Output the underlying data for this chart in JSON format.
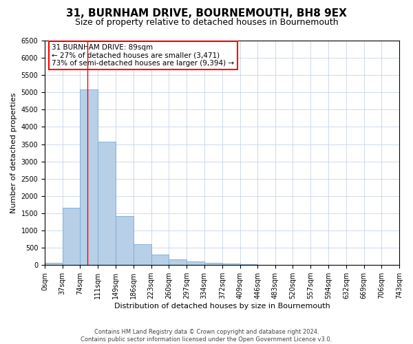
{
  "title1": "31, BURNHAM DRIVE, BOURNEMOUTH, BH8 9EX",
  "title2": "Size of property relative to detached houses in Bournemouth",
  "xlabel": "Distribution of detached houses by size in Bournemouth",
  "ylabel": "Number of detached properties",
  "footer1": "Contains HM Land Registry data © Crown copyright and database right 2024.",
  "footer2": "Contains public sector information licensed under the Open Government Licence v3.0.",
  "annotation_line1": "31 BURNHAM DRIVE: 89sqm",
  "annotation_line2": "← 27% of detached houses are smaller (3,471)",
  "annotation_line3": "73% of semi-detached houses are larger (9,394) →",
  "bar_color": "#b8cfe8",
  "bar_edge_color": "#7aaad0",
  "red_line_x": 89,
  "bin_edges": [
    0,
    37,
    74,
    111,
    149,
    186,
    223,
    260,
    297,
    334,
    372,
    409,
    446,
    483,
    520,
    557,
    594,
    632,
    669,
    706,
    743
  ],
  "bar_heights": [
    60,
    1650,
    5080,
    3580,
    1420,
    610,
    300,
    155,
    105,
    60,
    50,
    15,
    5,
    0,
    0,
    0,
    0,
    0,
    0,
    0
  ],
  "ylim": [
    0,
    6500
  ],
  "yticks": [
    0,
    500,
    1000,
    1500,
    2000,
    2500,
    3000,
    3500,
    4000,
    4500,
    5000,
    5500,
    6000,
    6500
  ],
  "background_color": "#ffffff",
  "grid_color": "#c8d4e8",
  "title1_fontsize": 11,
  "title2_fontsize": 9,
  "axis_fontsize": 8,
  "tick_fontsize": 7,
  "footer_fontsize": 6,
  "ann_fontsize": 7.5
}
